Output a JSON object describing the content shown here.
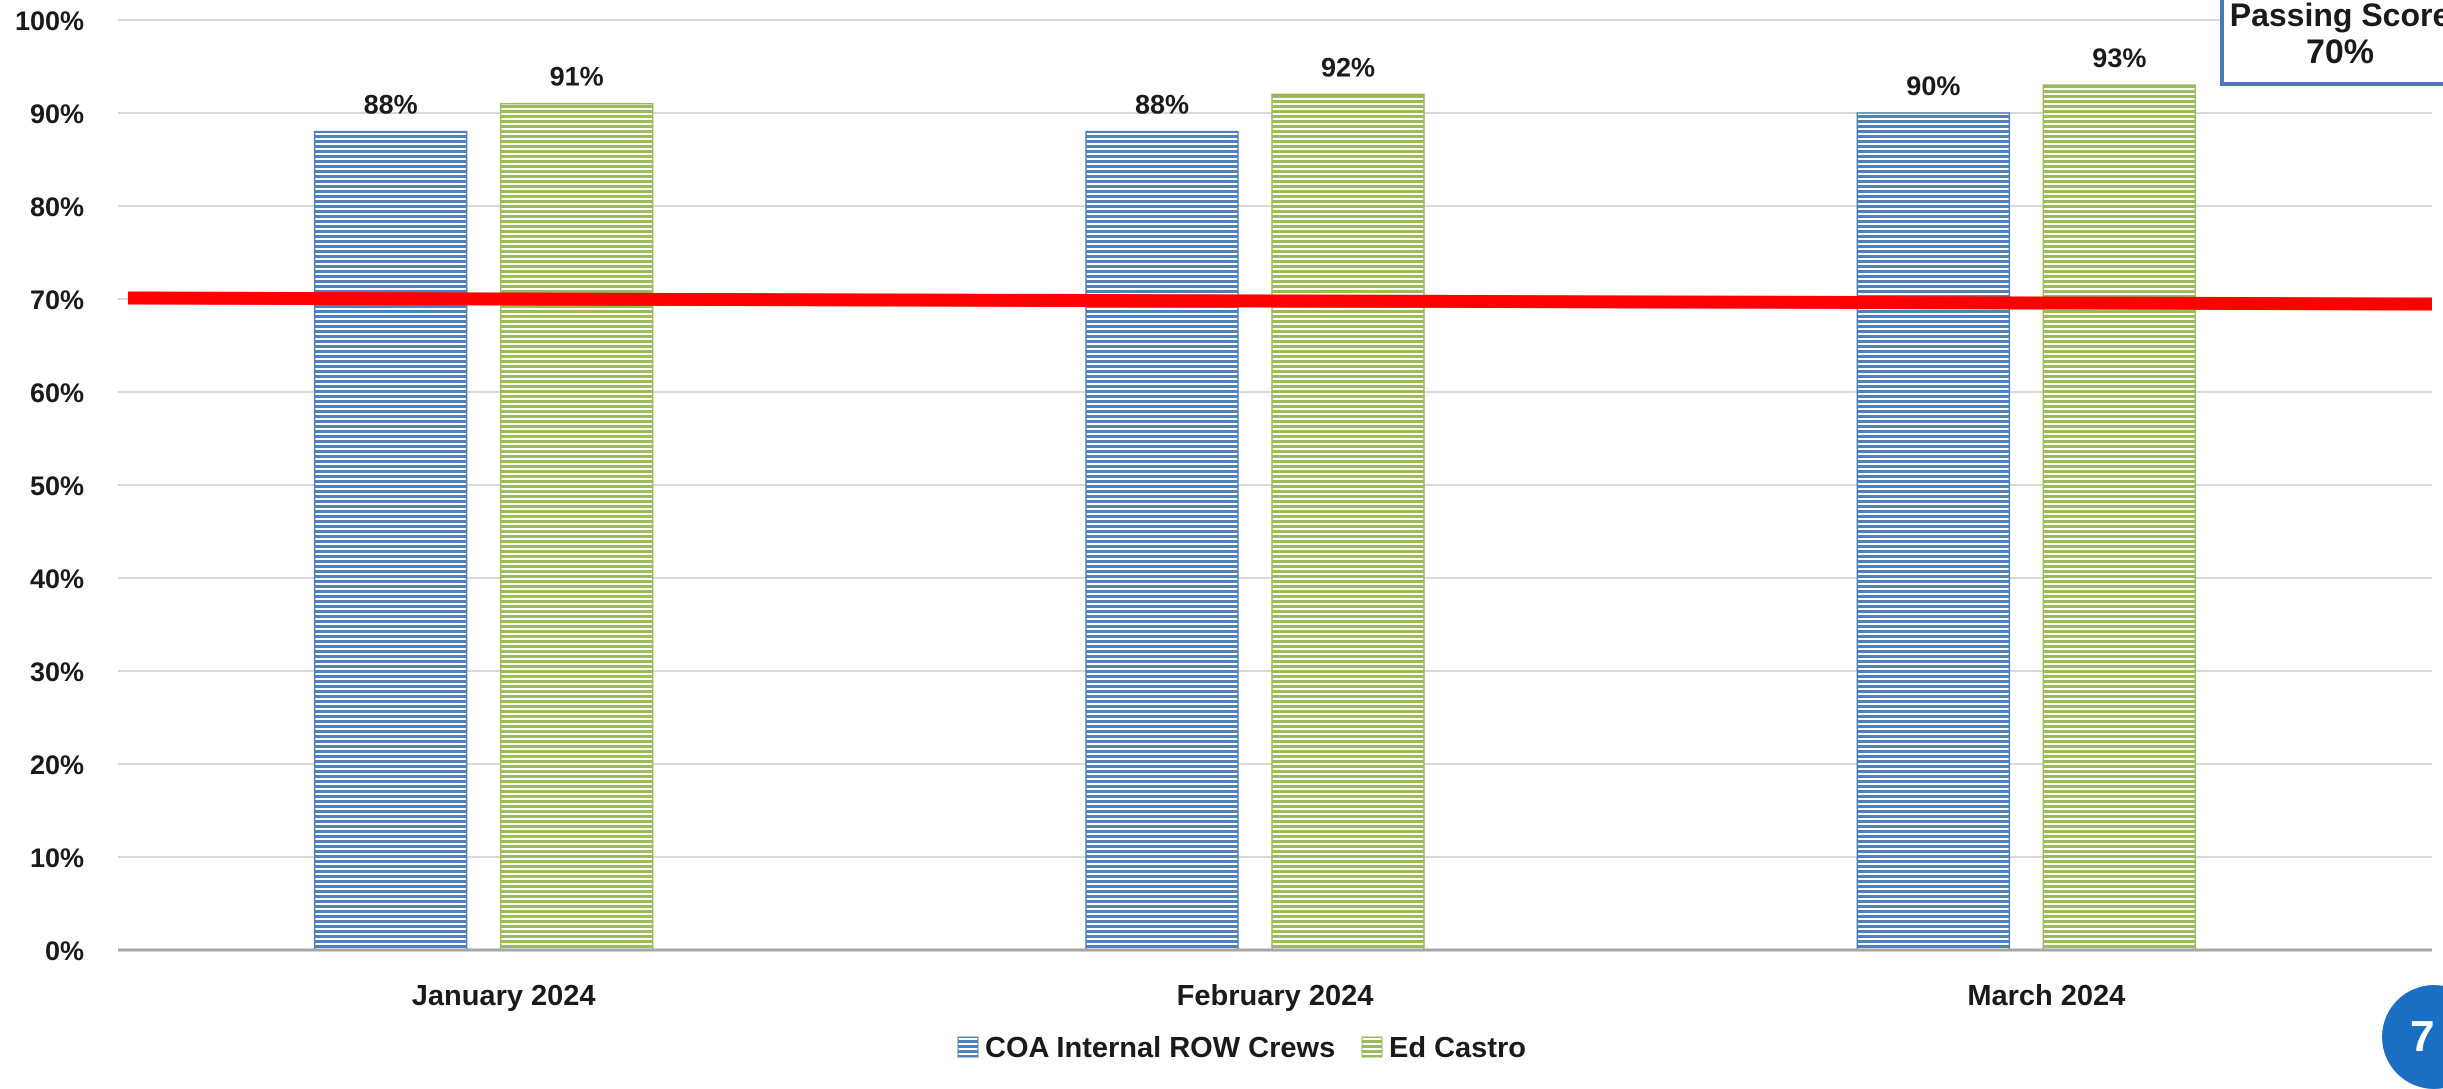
{
  "chart_data": {
    "type": "bar",
    "title": "",
    "xlabel": "",
    "ylabel": "",
    "categories": [
      "January 2024",
      "February 2024",
      "March 2024"
    ],
    "series": [
      {
        "name": "COA Internal ROW Crews",
        "values": [
          88,
          88,
          90
        ],
        "labels": [
          "88%",
          "88%",
          "90%"
        ],
        "color": "#4f81bd"
      },
      {
        "name": "Ed Castro",
        "values": [
          91,
          92,
          93
        ],
        "labels": [
          "91%",
          "92%",
          "93%"
        ],
        "color": "#9bbb59"
      }
    ],
    "ylim": [
      0,
      100
    ],
    "yticks": [
      0,
      10,
      20,
      30,
      40,
      50,
      60,
      70,
      80,
      90,
      100
    ],
    "ytick_labels": [
      "0%",
      "10%",
      "20%",
      "30%",
      "40%",
      "50%",
      "60%",
      "70%",
      "80%",
      "90%",
      "100%"
    ],
    "grid": true,
    "legend_position": "bottom-center",
    "threshold": {
      "value": 70,
      "color": "#ff0000"
    },
    "bar_pattern": "horizontal-stripes"
  },
  "callout": {
    "title": "Passing Score",
    "value": "70%"
  },
  "page_number": "7"
}
